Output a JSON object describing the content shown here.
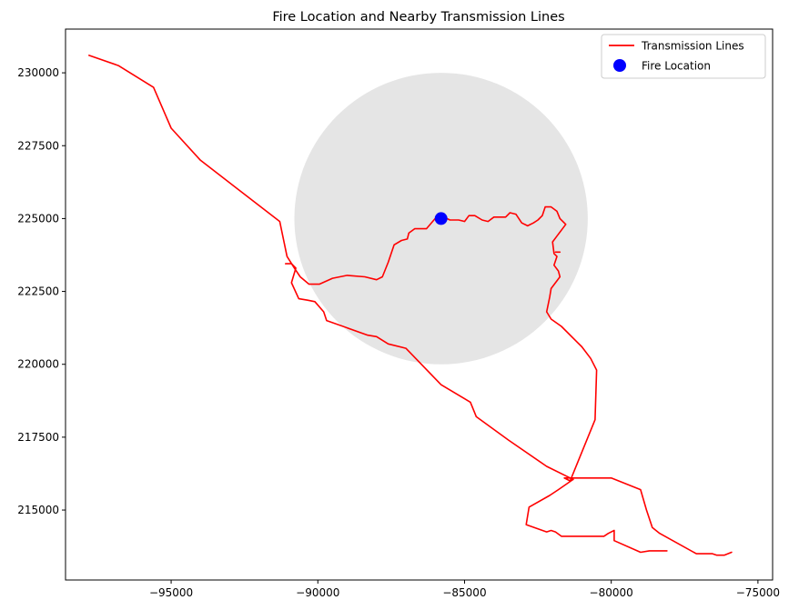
{
  "chart_data": {
    "type": "line",
    "title": "Fire Location and Nearby Transmission Lines",
    "xlabel": "",
    "ylabel": "",
    "xlim": [
      -98600,
      -74500
    ],
    "ylim": [
      212600,
      231500
    ],
    "x_ticks": [
      -95000,
      -90000,
      -85000,
      -80000,
      -75000
    ],
    "x_tick_labels": [
      "−95000",
      "−90000",
      "−85000",
      "−80000",
      "−75000"
    ],
    "y_ticks": [
      215000,
      217500,
      220000,
      222500,
      225000,
      227500,
      230000
    ],
    "y_tick_labels": [
      "215000",
      "217500",
      "220000",
      "222500",
      "225000",
      "227500",
      "230000"
    ],
    "grid": false,
    "legend_position": "top-right",
    "colors": {
      "line": "#ff0000",
      "fire": "#0000ff",
      "buffer": "#e5e5e5"
    },
    "buffer_zone": {
      "center": [
        -85800,
        225000
      ],
      "radius": 5000
    },
    "fire": {
      "name": "Fire Location",
      "x": -85800,
      "y": 225000
    },
    "series": [
      {
        "name": "Transmission Lines",
        "segments": [
          [
            [
              -97800,
              230600
            ],
            [
              -96800,
              230250
            ],
            [
              -95600,
              229500
            ],
            [
              -95000,
              228100
            ],
            [
              -94000,
              227000
            ],
            [
              -91300,
              224900
            ],
            [
              -91050,
              223700
            ],
            [
              -90800,
              223300
            ],
            [
              -90600,
              223000
            ],
            [
              -90300,
              222750
            ],
            [
              -89950,
              222750
            ],
            [
              -89500,
              222950
            ],
            [
              -89000,
              223050
            ],
            [
              -88400,
              223000
            ],
            [
              -88000,
              222900
            ],
            [
              -87800,
              223000
            ],
            [
              -87600,
              223500
            ],
            [
              -87400,
              224100
            ],
            [
              -87150,
              224250
            ],
            [
              -86950,
              224300
            ],
            [
              -86900,
              224500
            ],
            [
              -86700,
              224650
            ],
            [
              -86300,
              224650
            ],
            [
              -86000,
              225000
            ],
            [
              -85700,
              225050
            ],
            [
              -85500,
              224950
            ],
            [
              -85200,
              224950
            ],
            [
              -85000,
              224900
            ],
            [
              -84850,
              225100
            ],
            [
              -84650,
              225100
            ],
            [
              -84400,
              224950
            ],
            [
              -84200,
              224900
            ],
            [
              -84000,
              225050
            ],
            [
              -83600,
              225050
            ],
            [
              -83450,
              225200
            ],
            [
              -83250,
              225150
            ],
            [
              -83050,
              224850
            ],
            [
              -82850,
              224750
            ],
            [
              -82650,
              224850
            ],
            [
              -82500,
              224950
            ],
            [
              -82350,
              225100
            ],
            [
              -82250,
              225400
            ],
            [
              -82050,
              225400
            ],
            [
              -81850,
              225250
            ],
            [
              -81750,
              225000
            ],
            [
              -81550,
              224800
            ],
            [
              -81700,
              224600
            ],
            [
              -81850,
              224400
            ],
            [
              -82000,
              224200
            ],
            [
              -81950,
              223800
            ],
            [
              -81850,
              223700
            ],
            [
              -81950,
              223400
            ],
            [
              -81800,
              223200
            ],
            [
              -81750,
              223000
            ],
            [
              -82050,
              222600
            ],
            [
              -82100,
              222300
            ],
            [
              -82200,
              221800
            ],
            [
              -82050,
              221550
            ],
            [
              -81700,
              221300
            ],
            [
              -81000,
              220600
            ],
            [
              -80700,
              220200
            ],
            [
              -80500,
              219800
            ],
            [
              -80550,
              218100
            ],
            [
              -81400,
              216000
            ],
            [
              -81600,
              216100
            ],
            [
              -80000,
              216100
            ],
            [
              -79000,
              215700
            ],
            [
              -78800,
              215000
            ],
            [
              -78600,
              214400
            ],
            [
              -78350,
              214200
            ],
            [
              -77100,
              213500
            ],
            [
              -76550,
              213500
            ],
            [
              -76400,
              213450
            ],
            [
              -76150,
              213450
            ],
            [
              -75900,
              213550
            ]
          ],
          [
            [
              -91100,
              223450
            ],
            [
              -90900,
              223450
            ],
            [
              -90750,
              223300
            ],
            [
              -90900,
              222800
            ],
            [
              -90650,
              222250
            ],
            [
              -90350,
              222200
            ],
            [
              -90100,
              222150
            ],
            [
              -89800,
              221800
            ],
            [
              -89700,
              221500
            ],
            [
              -88300,
              221000
            ],
            [
              -88000,
              220950
            ],
            [
              -87600,
              220700
            ],
            [
              -87000,
              220550
            ],
            [
              -85800,
              219300
            ],
            [
              -84800,
              218700
            ],
            [
              -84600,
              218200
            ],
            [
              -83500,
              217400
            ],
            [
              -82200,
              216500
            ],
            [
              -81500,
              216150
            ],
            [
              -81300,
              216050
            ]
          ],
          [
            [
              -81300,
              216050
            ],
            [
              -81800,
              215700
            ],
            [
              -82100,
              215500
            ],
            [
              -82800,
              215100
            ],
            [
              -82900,
              214500
            ],
            [
              -82200,
              214250
            ],
            [
              -82050,
              214300
            ],
            [
              -81900,
              214250
            ],
            [
              -81700,
              214100
            ],
            [
              -81500,
              214100
            ],
            [
              -80250,
              214100
            ],
            [
              -80100,
              214200
            ],
            [
              -79900,
              214300
            ],
            [
              -79900,
              213950
            ],
            [
              -79000,
              213550
            ],
            [
              -78700,
              213600
            ],
            [
              -78100,
              213600
            ]
          ],
          [
            [
              -81900,
              223850
            ],
            [
              -81750,
              223850
            ]
          ]
        ]
      }
    ]
  }
}
